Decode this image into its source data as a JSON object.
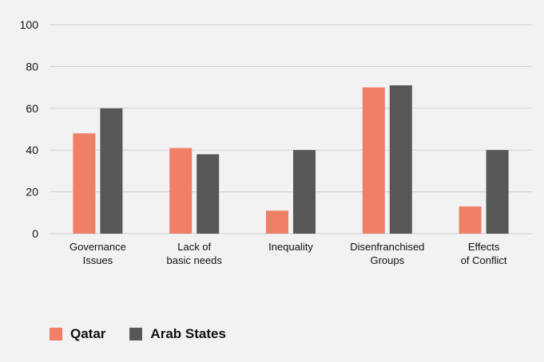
{
  "chart_data": {
    "type": "bar",
    "categories": [
      [
        "Governance",
        "Issues"
      ],
      [
        "Lack of",
        "basic needs"
      ],
      [
        "Inequality"
      ],
      [
        "Disenfranchised",
        "Groups"
      ],
      [
        "Effects",
        "of Conflict"
      ]
    ],
    "series": [
      {
        "name": "Qatar",
        "values": [
          48,
          41,
          11,
          70,
          13
        ],
        "color": "#f07f67"
      },
      {
        "name": "Arab States",
        "values": [
          60,
          38,
          40,
          71,
          40
        ],
        "color": "#575757"
      }
    ],
    "yticks": [
      "0",
      "20",
      "40",
      "60",
      "80",
      "100"
    ],
    "ylim": [
      0,
      100
    ],
    "grid": true,
    "legend_position": "bottom-left"
  },
  "legend": {
    "items": [
      {
        "label": "Qatar",
        "color": "#f07f67"
      },
      {
        "label": "Arab States",
        "color": "#575757"
      }
    ]
  }
}
